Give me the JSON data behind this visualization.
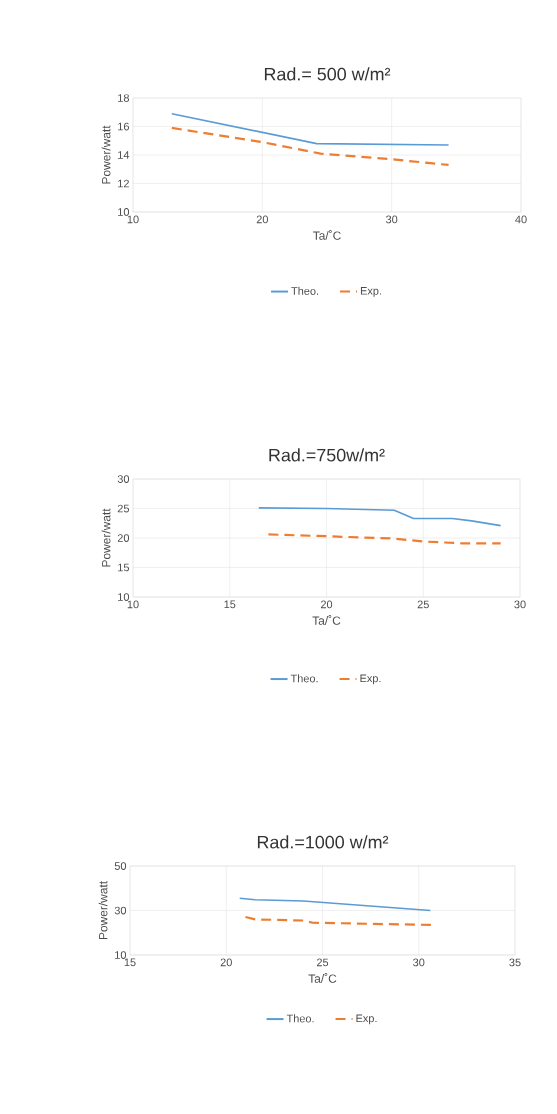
{
  "chart_data": [
    {
      "type": "line",
      "title": "Rad.= 500 w/m²",
      "xlabel": "Ta/˚C",
      "ylabel": "Power/watt",
      "xlim": [
        10,
        40
      ],
      "xticks": [
        10,
        20,
        30,
        40
      ],
      "ylim": [
        10,
        18
      ],
      "yticks": [
        10,
        12,
        14,
        16,
        18
      ],
      "grid": true,
      "legend": "bottom",
      "series": [
        {
          "name": "Theo.",
          "color": "#5b9bd5",
          "line_style": "solid",
          "x": [
            13,
            24.2,
            34.4
          ],
          "values": [
            16.9,
            14.8,
            14.7
          ]
        },
        {
          "name": "Exp.",
          "color": "#ed7d31",
          "line_style": "dashed",
          "x": [
            13,
            20,
            24.5,
            30,
            34.4
          ],
          "values": [
            15.9,
            14.9,
            14.1,
            13.7,
            13.3
          ]
        }
      ]
    },
    {
      "type": "line",
      "title": "Rad.=750w/m²",
      "xlabel": "Ta/˚C",
      "ylabel": "Power/watt",
      "xlim": [
        10,
        30
      ],
      "xticks": [
        10,
        15,
        20,
        25,
        30
      ],
      "ylim": [
        10,
        30
      ],
      "yticks": [
        10,
        15,
        20,
        25,
        30
      ],
      "grid": true,
      "legend": "bottom",
      "series": [
        {
          "name": "Theo.",
          "color": "#5b9bd5",
          "line_style": "solid",
          "x": [
            16.5,
            20,
            23.5,
            24.5,
            26.5,
            27.5,
            29
          ],
          "values": [
            25.1,
            25.0,
            24.7,
            23.3,
            23.3,
            22.9,
            22.1
          ]
        },
        {
          "name": "Exp.",
          "color": "#ed7d31",
          "line_style": "dashed",
          "x": [
            17,
            20,
            23.5,
            25,
            27,
            29
          ],
          "values": [
            20.6,
            20.3,
            19.9,
            19.4,
            19.1,
            19.1
          ]
        }
      ]
    },
    {
      "type": "line",
      "title": "Rad.=1000 w/m²",
      "xlabel": "Ta/˚C",
      "ylabel": "Power/watt",
      "xlim": [
        15,
        35
      ],
      "xticks": [
        15,
        20,
        25,
        30,
        35
      ],
      "ylim": [
        10,
        50
      ],
      "yticks": [
        10,
        30,
        50
      ],
      "grid": true,
      "legend": "bottom",
      "series": [
        {
          "name": "Theo.",
          "color": "#5b9bd5",
          "line_style": "solid",
          "x": [
            20.7,
            21.5,
            24,
            30.6
          ],
          "values": [
            35.5,
            34.8,
            34.3,
            30
          ]
        },
        {
          "name": "Exp.",
          "color": "#ed7d31",
          "line_style": "dashed",
          "x": [
            21,
            21.5,
            24,
            24.5,
            30.7
          ],
          "values": [
            27.1,
            26,
            25.5,
            24.5,
            23.5
          ]
        }
      ]
    }
  ]
}
